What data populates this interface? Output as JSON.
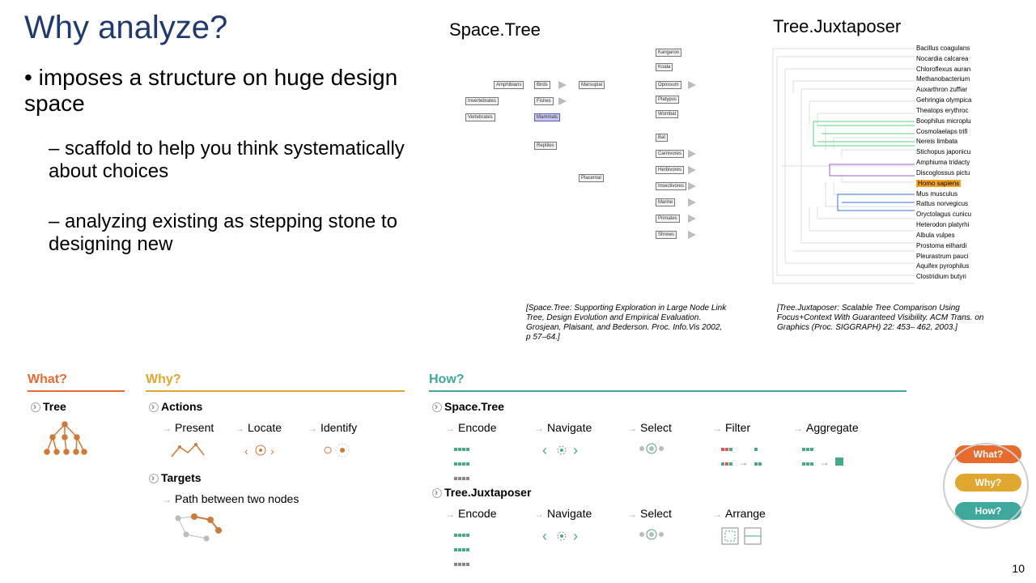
{
  "title": "Why analyze?",
  "col1": "Space.Tree",
  "col2": "Tree.Juxtaposer",
  "bullet_main": "imposes a structure on huge design space",
  "sub1": "scaffold to help you think systematically about choices",
  "sub2": "analyzing existing as stepping stone to designing new",
  "cite1": "[Space.Tree: Supporting Exploration in Large Node Link Tree, Design Evolution and Empirical Evaluation. Grosjean, Plaisant, and Bederson. Proc. Info.Vis 2002, p 57–64.]",
  "cite2": "[Tree.Juxtaposer: Scalable Tree Comparison Using Focus+Context With Guaranteed Visibility. ACM Trans. on Graphics (Proc. SIGGRAPH) 22: 453– 462, 2003.]",
  "page": "10",
  "colors": {
    "title": "#1f3a6e",
    "what": "#e86b2e",
    "why": "#e0a62e",
    "how": "#3fa89c",
    "green": "#5fd07a",
    "purple": "#9b5fc7",
    "blue": "#3a6fd0",
    "orange_hl": "#f5a623"
  },
  "bottom": {
    "what": "What?",
    "why": "Why?",
    "how": "How?",
    "tree": "Tree",
    "actions": "Actions",
    "present": "Present",
    "locate": "Locate",
    "identify": "Identify",
    "targets": "Targets",
    "path": "Path between two nodes",
    "spacetree": "Space.Tree",
    "treejux": "Tree.Juxtaposer",
    "encode": "Encode",
    "navigate": "Navigate",
    "select": "Select",
    "filter": "Filter",
    "aggregate": "Aggregate",
    "arrange": "Arrange",
    "pill_what": "What?",
    "pill_why": "Why?",
    "pill_how": "How?"
  },
  "st_nodes": [
    "Amphibians",
    "Invertebrates",
    "Vertebrates",
    "Birds",
    "Fishes",
    "Mammals",
    "Reptiles",
    "Marsupial",
    "Placental",
    "Kangaroo",
    "Koala",
    "Opossum",
    "Platypus",
    "Wombat",
    "Bat",
    "Carnivores",
    "Herbivores",
    "Insectivores",
    "Marine",
    "Primates",
    "Shrews"
  ],
  "jx_labels": [
    "Bacillus coagulans",
    "Nocardia calcarea",
    "Chloroflexus auran",
    "Methanobacterium",
    "Auxarthron zuffiar",
    "Gehringia olympica",
    "Theatops erythroc",
    "Boophilus microplu",
    "Cosmolaelaps trifi",
    "Nereis limbata",
    "Stichopus japonicu",
    "Amphiuma tridacty",
    "Discoglossus pictu",
    "Homo sapiens",
    "Mus musculus",
    "Rattus norvegicus",
    "Oryctolagus cunicu",
    "Heterodon platyrhi",
    "Albula vulpes",
    "Prostoma eilhardi",
    "Pleurastrum pauci",
    "Aquifex pyrophilus",
    "Clostridium butyri"
  ]
}
